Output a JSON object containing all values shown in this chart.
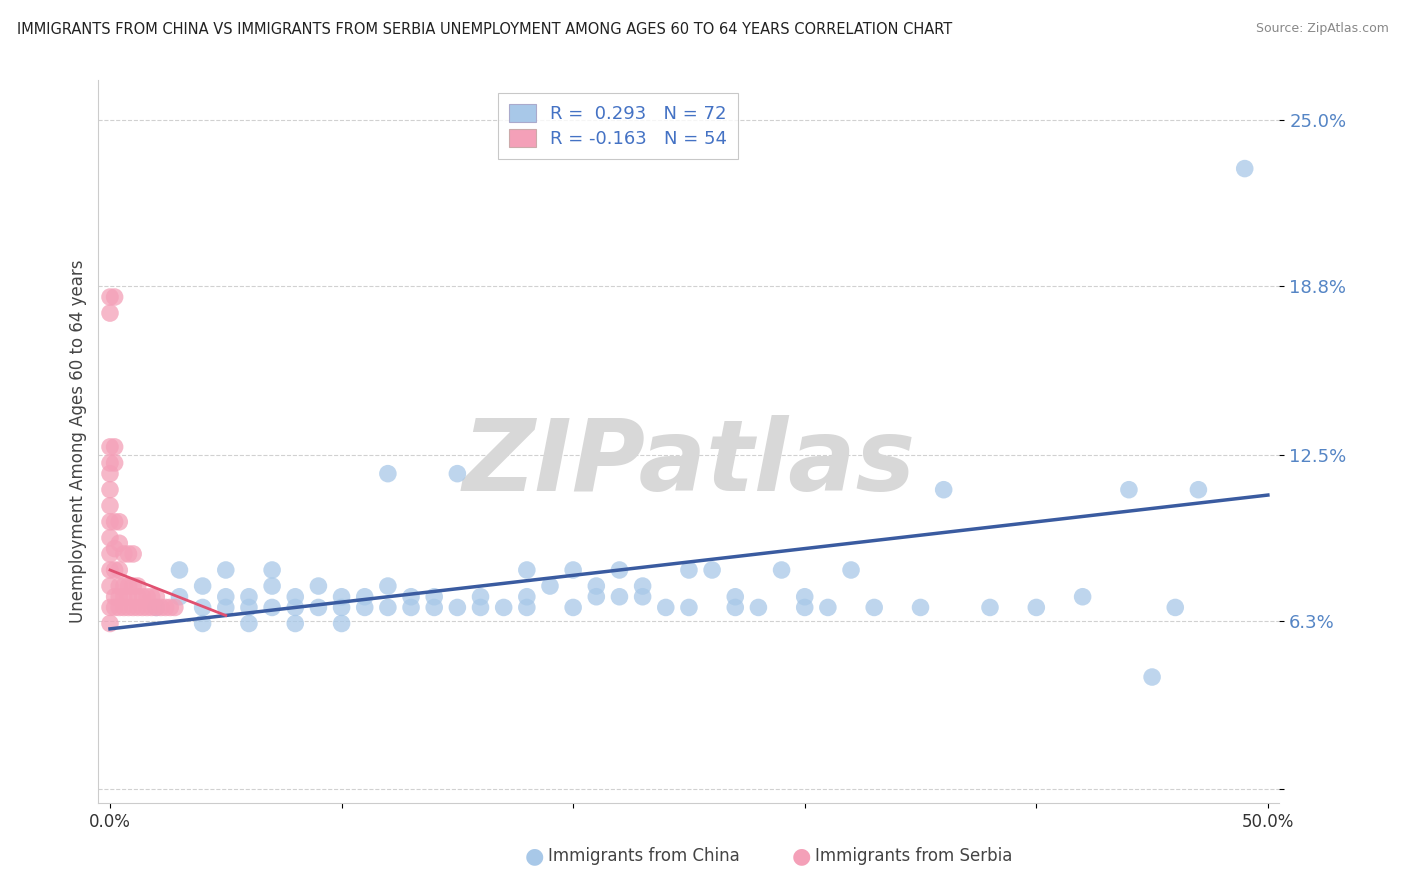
{
  "title": "IMMIGRANTS FROM CHINA VS IMMIGRANTS FROM SERBIA UNEMPLOYMENT AMONG AGES 60 TO 64 YEARS CORRELATION CHART",
  "source": "Source: ZipAtlas.com",
  "ylabel": "Unemployment Among Ages 60 to 64 years",
  "xlim": [
    -0.005,
    0.505
  ],
  "ylim": [
    -0.005,
    0.265
  ],
  "yticks": [
    0.0,
    0.063,
    0.125,
    0.188,
    0.25
  ],
  "ytick_labels": [
    "",
    "6.3%",
    "12.5%",
    "18.8%",
    "25.0%"
  ],
  "xticks": [
    0.0,
    0.1,
    0.2,
    0.3,
    0.4,
    0.5
  ],
  "xtick_labels": [
    "0.0%",
    "",
    "",
    "",
    "",
    "50.0%"
  ],
  "china_color": "#a8c8e8",
  "serbia_color": "#f4a0b8",
  "china_line_color": "#3a5ba0",
  "serbia_line_color": "#e05070",
  "R_china": 0.293,
  "N_china": 72,
  "R_serbia": -0.163,
  "N_serbia": 54,
  "legend_label_china": "Immigrants from China",
  "legend_label_serbia": "Immigrants from Serbia",
  "watermark": "ZIPatlas",
  "background_color": "#ffffff",
  "grid_color": "#cccccc",
  "china_scatter": [
    [
      0.02,
      0.068
    ],
    [
      0.03,
      0.072
    ],
    [
      0.03,
      0.082
    ],
    [
      0.04,
      0.068
    ],
    [
      0.04,
      0.076
    ],
    [
      0.04,
      0.062
    ],
    [
      0.05,
      0.072
    ],
    [
      0.05,
      0.068
    ],
    [
      0.05,
      0.082
    ],
    [
      0.06,
      0.072
    ],
    [
      0.06,
      0.068
    ],
    [
      0.06,
      0.062
    ],
    [
      0.07,
      0.082
    ],
    [
      0.07,
      0.068
    ],
    [
      0.07,
      0.076
    ],
    [
      0.08,
      0.068
    ],
    [
      0.08,
      0.072
    ],
    [
      0.08,
      0.062
    ],
    [
      0.09,
      0.068
    ],
    [
      0.09,
      0.076
    ],
    [
      0.1,
      0.068
    ],
    [
      0.1,
      0.072
    ],
    [
      0.1,
      0.062
    ],
    [
      0.11,
      0.072
    ],
    [
      0.11,
      0.068
    ],
    [
      0.12,
      0.068
    ],
    [
      0.12,
      0.076
    ],
    [
      0.12,
      0.118
    ],
    [
      0.13,
      0.068
    ],
    [
      0.13,
      0.072
    ],
    [
      0.14,
      0.068
    ],
    [
      0.14,
      0.072
    ],
    [
      0.15,
      0.068
    ],
    [
      0.15,
      0.118
    ],
    [
      0.16,
      0.072
    ],
    [
      0.16,
      0.068
    ],
    [
      0.17,
      0.068
    ],
    [
      0.18,
      0.068
    ],
    [
      0.18,
      0.072
    ],
    [
      0.18,
      0.082
    ],
    [
      0.19,
      0.076
    ],
    [
      0.2,
      0.082
    ],
    [
      0.2,
      0.068
    ],
    [
      0.21,
      0.076
    ],
    [
      0.21,
      0.072
    ],
    [
      0.22,
      0.082
    ],
    [
      0.22,
      0.072
    ],
    [
      0.23,
      0.072
    ],
    [
      0.23,
      0.076
    ],
    [
      0.24,
      0.068
    ],
    [
      0.25,
      0.082
    ],
    [
      0.25,
      0.068
    ],
    [
      0.26,
      0.082
    ],
    [
      0.27,
      0.072
    ],
    [
      0.27,
      0.068
    ],
    [
      0.28,
      0.068
    ],
    [
      0.29,
      0.082
    ],
    [
      0.3,
      0.068
    ],
    [
      0.3,
      0.072
    ],
    [
      0.31,
      0.068
    ],
    [
      0.32,
      0.082
    ],
    [
      0.33,
      0.068
    ],
    [
      0.35,
      0.068
    ],
    [
      0.36,
      0.112
    ],
    [
      0.38,
      0.068
    ],
    [
      0.4,
      0.068
    ],
    [
      0.42,
      0.072
    ],
    [
      0.44,
      0.112
    ],
    [
      0.45,
      0.042
    ],
    [
      0.46,
      0.068
    ],
    [
      0.47,
      0.112
    ],
    [
      0.49,
      0.232
    ]
  ],
  "serbia_scatter": [
    [
      0.0,
      0.068
    ],
    [
      0.0,
      0.076
    ],
    [
      0.0,
      0.082
    ],
    [
      0.0,
      0.088
    ],
    [
      0.0,
      0.094
    ],
    [
      0.0,
      0.1
    ],
    [
      0.0,
      0.106
    ],
    [
      0.0,
      0.112
    ],
    [
      0.0,
      0.118
    ],
    [
      0.0,
      0.062
    ],
    [
      0.002,
      0.068
    ],
    [
      0.002,
      0.072
    ],
    [
      0.002,
      0.082
    ],
    [
      0.002,
      0.09
    ],
    [
      0.002,
      0.1
    ],
    [
      0.004,
      0.068
    ],
    [
      0.004,
      0.072
    ],
    [
      0.004,
      0.076
    ],
    [
      0.004,
      0.082
    ],
    [
      0.004,
      0.092
    ],
    [
      0.004,
      0.1
    ],
    [
      0.006,
      0.068
    ],
    [
      0.006,
      0.072
    ],
    [
      0.006,
      0.076
    ],
    [
      0.006,
      0.088
    ],
    [
      0.008,
      0.068
    ],
    [
      0.008,
      0.072
    ],
    [
      0.008,
      0.076
    ],
    [
      0.008,
      0.088
    ],
    [
      0.01,
      0.068
    ],
    [
      0.01,
      0.076
    ],
    [
      0.01,
      0.088
    ],
    [
      0.012,
      0.068
    ],
    [
      0.012,
      0.072
    ],
    [
      0.012,
      0.076
    ],
    [
      0.014,
      0.068
    ],
    [
      0.014,
      0.072
    ],
    [
      0.016,
      0.068
    ],
    [
      0.016,
      0.072
    ],
    [
      0.018,
      0.068
    ],
    [
      0.018,
      0.072
    ],
    [
      0.02,
      0.068
    ],
    [
      0.02,
      0.072
    ],
    [
      0.022,
      0.068
    ],
    [
      0.024,
      0.068
    ],
    [
      0.026,
      0.068
    ],
    [
      0.028,
      0.068
    ],
    [
      0.0,
      0.128
    ],
    [
      0.0,
      0.122
    ],
    [
      0.002,
      0.128
    ],
    [
      0.002,
      0.122
    ],
    [
      0.0,
      0.178
    ],
    [
      0.0,
      0.184
    ],
    [
      0.002,
      0.184
    ]
  ],
  "china_trend": [
    0.0,
    0.5,
    0.06,
    0.11
  ],
  "serbia_trend": [
    0.0,
    0.05,
    0.082,
    0.065
  ]
}
